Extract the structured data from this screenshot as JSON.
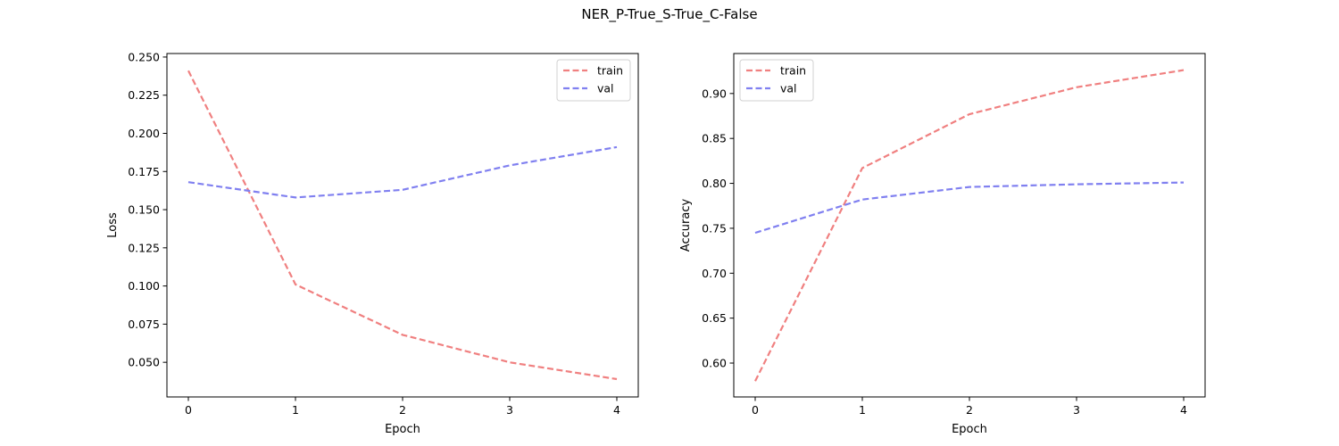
{
  "figure": {
    "title": "NER_P-True_S-True_C-False"
  },
  "chart_data": [
    {
      "type": "line",
      "xlabel": "Epoch",
      "ylabel": "Loss",
      "x": [
        0,
        1,
        2,
        3,
        4
      ],
      "xticks": [
        "0",
        "1",
        "2",
        "3",
        "4"
      ],
      "xlim": [
        -0.2,
        4.2
      ],
      "yticks": [
        0.05,
        0.075,
        0.1,
        0.125,
        0.15,
        0.175,
        0.2,
        0.225,
        0.25
      ],
      "ytick_labels": [
        "0.050",
        "0.075",
        "0.100",
        "0.125",
        "0.150",
        "0.175",
        "0.200",
        "0.225",
        "0.250"
      ],
      "ylim": [
        0.0273,
        0.2523
      ],
      "legend": "top-right",
      "grid": false,
      "series": [
        {
          "name": "train",
          "color": "#f08080",
          "values": [
            0.241,
            0.101,
            0.068,
            0.05,
            0.039
          ]
        },
        {
          "name": "val",
          "color": "#8080f0",
          "values": [
            0.168,
            0.158,
            0.163,
            0.179,
            0.191
          ]
        }
      ]
    },
    {
      "type": "line",
      "xlabel": "Epoch",
      "ylabel": "Accuracy",
      "x": [
        0,
        1,
        2,
        3,
        4
      ],
      "xticks": [
        "0",
        "1",
        "2",
        "3",
        "4"
      ],
      "xlim": [
        -0.2,
        4.2
      ],
      "yticks": [
        0.6,
        0.65,
        0.7,
        0.75,
        0.8,
        0.85,
        0.9
      ],
      "ytick_labels": [
        "0.60",
        "0.65",
        "0.70",
        "0.75",
        "0.80",
        "0.85",
        "0.90"
      ],
      "ylim": [
        0.5623,
        0.9445
      ],
      "legend": "top-left",
      "grid": false,
      "series": [
        {
          "name": "train",
          "color": "#f08080",
          "values": [
            0.58,
            0.817,
            0.877,
            0.907,
            0.926
          ]
        },
        {
          "name": "val",
          "color": "#8080f0",
          "values": [
            0.745,
            0.782,
            0.796,
            0.799,
            0.801
          ]
        }
      ]
    }
  ]
}
